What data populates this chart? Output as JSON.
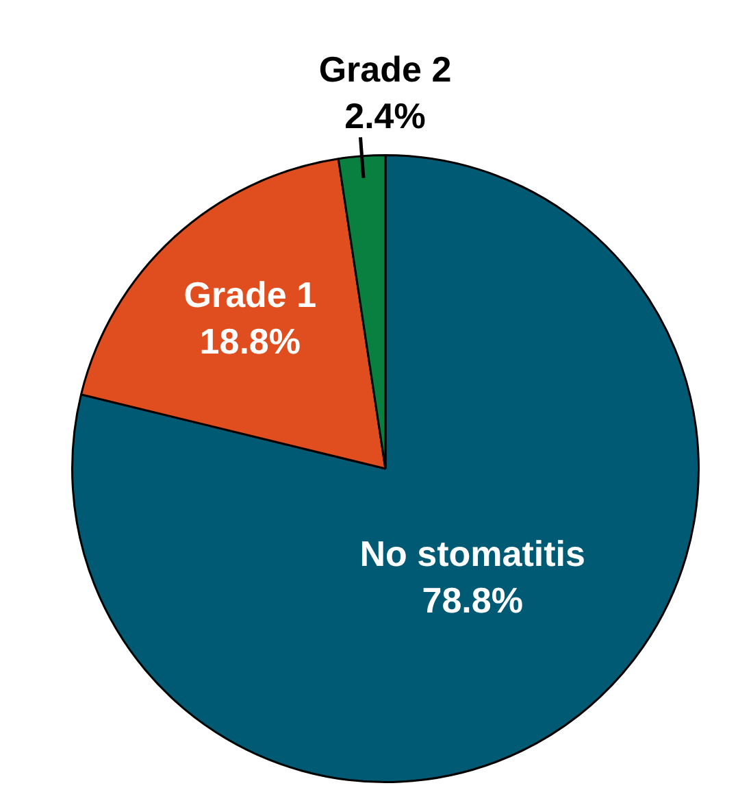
{
  "chart_data": {
    "type": "pie",
    "categories": [
      "No stomatitis",
      "Grade 1",
      "Grade 2"
    ],
    "values": [
      78.8,
      18.8,
      2.4
    ],
    "colors": [
      "#005a73",
      "#e04e1f",
      "#0a8040"
    ],
    "value_labels": [
      "78.8%",
      "18.8%",
      "2.4%"
    ],
    "legend": false
  }
}
